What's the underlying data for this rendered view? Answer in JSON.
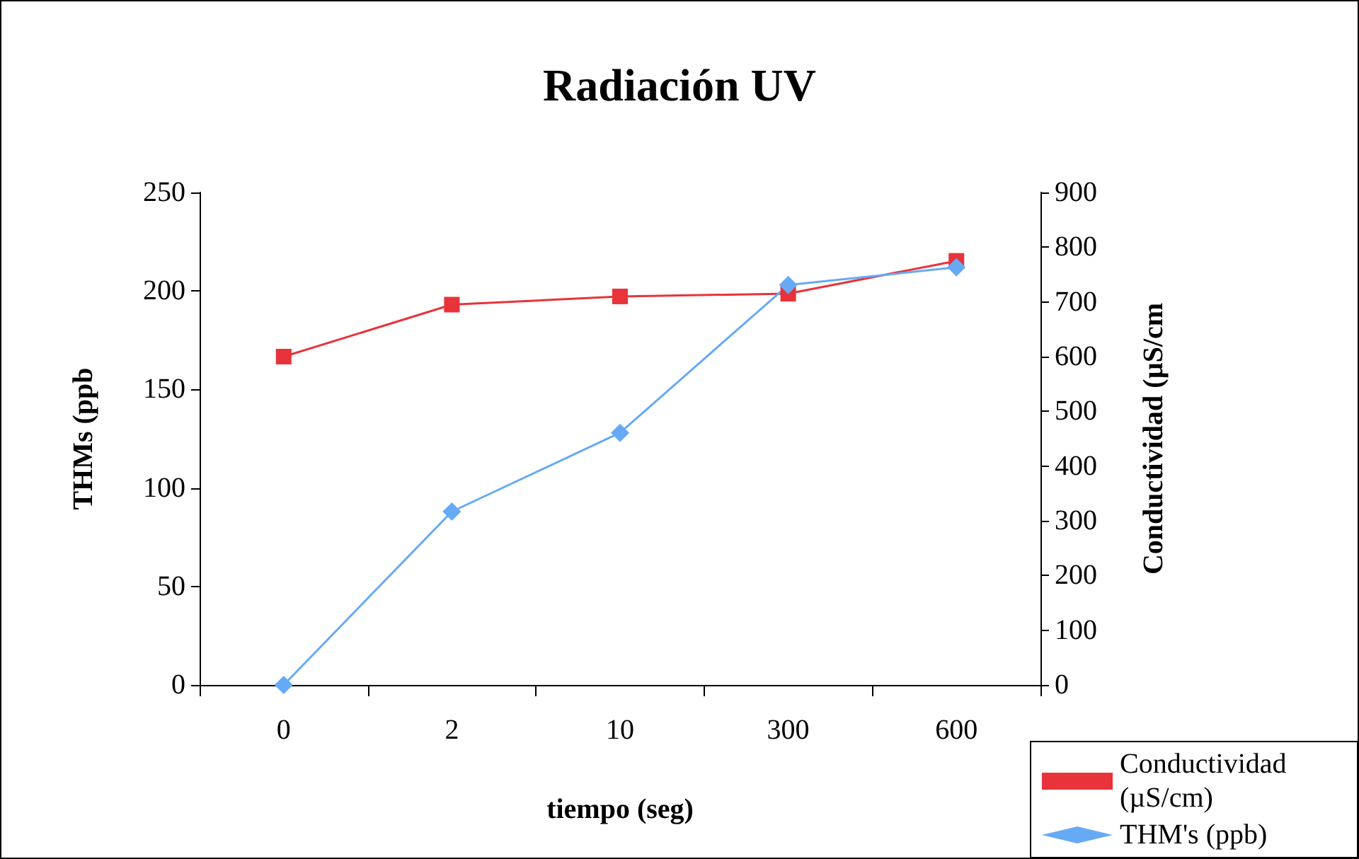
{
  "chart_data": {
    "type": "line",
    "title": "Radiación UV",
    "xlabel": "tiempo (seg)",
    "ylabel": "THMs (ppb",
    "y2label": "Conductividad (µS/cm",
    "categories": [
      "0",
      "2",
      "10",
      "300",
      "600"
    ],
    "series": [
      {
        "name": "Conductividad (µS/cm)",
        "color": "#e8333a",
        "values": [
          600,
          695,
          710,
          715,
          775
        ],
        "axis": "y2",
        "marker": "square"
      },
      {
        "name": "THM's (ppb)",
        "color": "#66aaf5",
        "values": [
          0,
          88,
          128,
          203,
          212
        ],
        "marker": "diamond"
      }
    ],
    "ylim": [
      0,
      250
    ],
    "yticks": [
      0,
      50,
      100,
      150,
      200,
      250
    ],
    "y2lim": [
      0,
      900
    ],
    "y2ticks": [
      0,
      100,
      200,
      300,
      400,
      500,
      600,
      700,
      800,
      900
    ],
    "grid": false,
    "legend": "bottom right"
  }
}
